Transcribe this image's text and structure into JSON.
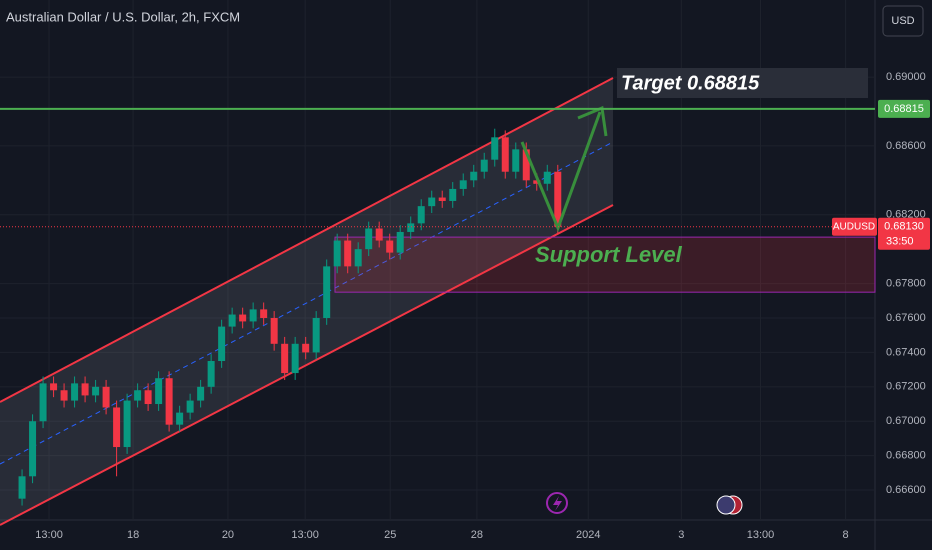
{
  "chart_data": {
    "type": "candlestick",
    "title": "Australian Dollar / U.S. Dollar, 2h, FXCM",
    "currency": "USD",
    "x": [
      0,
      1,
      2,
      3,
      4,
      5,
      6,
      7,
      8,
      9,
      10,
      11,
      12,
      13,
      14,
      15,
      16,
      17,
      18,
      19,
      20,
      21,
      22,
      23,
      24,
      25,
      26,
      27,
      28,
      29,
      30,
      31,
      32,
      33,
      34,
      35,
      36,
      37,
      38,
      39,
      40,
      41,
      42,
      43,
      44,
      45,
      46,
      47,
      48,
      49,
      50,
      51
    ],
    "open": [
      0.6655,
      0.6668,
      0.67,
      0.6722,
      0.6718,
      0.6712,
      0.6722,
      0.6715,
      0.672,
      0.6708,
      0.6685,
      0.6712,
      0.6718,
      0.671,
      0.6725,
      0.6698,
      0.6705,
      0.6712,
      0.672,
      0.6735,
      0.6755,
      0.6762,
      0.6758,
      0.6765,
      0.676,
      0.6745,
      0.6728,
      0.6745,
      0.674,
      0.676,
      0.679,
      0.6805,
      0.679,
      0.68,
      0.6812,
      0.6805,
      0.6798,
      0.681,
      0.6815,
      0.6825,
      0.683,
      0.6828,
      0.6835,
      0.684,
      0.6845,
      0.6852,
      0.6865,
      0.6845,
      0.6858,
      0.684,
      0.6838,
      0.6845
    ],
    "high": [
      0.6672,
      0.6704,
      0.6726,
      0.6726,
      0.6722,
      0.6726,
      0.6726,
      0.6724,
      0.6724,
      0.6712,
      0.6716,
      0.6722,
      0.6722,
      0.6729,
      0.6729,
      0.6709,
      0.6716,
      0.6724,
      0.6739,
      0.6759,
      0.6766,
      0.6766,
      0.6769,
      0.6769,
      0.6764,
      0.6749,
      0.6749,
      0.6749,
      0.6764,
      0.6794,
      0.6809,
      0.6809,
      0.6804,
      0.6816,
      0.6816,
      0.6809,
      0.6814,
      0.6819,
      0.6829,
      0.6834,
      0.6834,
      0.6839,
      0.6844,
      0.6849,
      0.6856,
      0.687,
      0.6869,
      0.6862,
      0.6862,
      0.6844,
      0.6849,
      0.6849
    ],
    "low": [
      0.6651,
      0.6664,
      0.6696,
      0.6714,
      0.6708,
      0.6708,
      0.6711,
      0.6711,
      0.6704,
      0.6668,
      0.6681,
      0.6708,
      0.6706,
      0.6706,
      0.6694,
      0.6694,
      0.6701,
      0.6708,
      0.6716,
      0.6731,
      0.6751,
      0.6754,
      0.6754,
      0.6756,
      0.6741,
      0.6724,
      0.6724,
      0.6736,
      0.6736,
      0.6756,
      0.6786,
      0.6786,
      0.6786,
      0.6796,
      0.6801,
      0.6794,
      0.6794,
      0.6806,
      0.6811,
      0.6821,
      0.6824,
      0.6824,
      0.6831,
      0.6836,
      0.6841,
      0.6848,
      0.6841,
      0.6841,
      0.6836,
      0.6834,
      0.6834,
      0.6809
    ],
    "close": [
      0.6668,
      0.67,
      0.6722,
      0.6718,
      0.6712,
      0.6722,
      0.6715,
      0.672,
      0.6708,
      0.6685,
      0.6712,
      0.6718,
      0.671,
      0.6725,
      0.6698,
      0.6705,
      0.6712,
      0.672,
      0.6735,
      0.6755,
      0.6762,
      0.6758,
      0.6765,
      0.676,
      0.6745,
      0.6728,
      0.6745,
      0.674,
      0.676,
      0.679,
      0.6805,
      0.679,
      0.68,
      0.6812,
      0.6805,
      0.6798,
      0.681,
      0.6815,
      0.6825,
      0.683,
      0.6828,
      0.6835,
      0.684,
      0.6845,
      0.6852,
      0.6865,
      0.6845,
      0.6858,
      0.684,
      0.6838,
      0.6845,
      0.6813
    ],
    "up_color": "#089981",
    "down_color": "#f23645",
    "xlim": [
      -2.1,
      81.2
    ],
    "xticks": [
      {
        "value": 2.57,
        "label": "13:00"
      },
      {
        "value": 10.57,
        "label": "18"
      },
      {
        "value": 19.6,
        "label": "20"
      },
      {
        "value": 26.95,
        "label": "13:00"
      },
      {
        "value": 35.05,
        "label": "25"
      },
      {
        "value": 43.3,
        "label": "28"
      },
      {
        "value": 53.9,
        "label": "2024"
      },
      {
        "value": 62.76,
        "label": "3"
      },
      {
        "value": 70.3,
        "label": "13:00"
      },
      {
        "value": 78.4,
        "label": "8"
      }
    ],
    "ylim": [
      0.66426,
      0.69448
    ],
    "yticks": [
      {
        "value": 0.69,
        "label": "0.69000"
      },
      {
        "value": 0.686,
        "label": "0.68600"
      },
      {
        "value": 0.682,
        "label": "0.68200"
      },
      {
        "value": 0.678,
        "label": "0.67800"
      },
      {
        "value": 0.676,
        "label": "0.67600"
      },
      {
        "value": 0.674,
        "label": "0.67400"
      },
      {
        "value": 0.672,
        "label": "0.67200"
      },
      {
        "value": 0.67,
        "label": "0.67000"
      },
      {
        "value": 0.668,
        "label": "0.66800"
      },
      {
        "value": 0.666,
        "label": "0.66600"
      }
    ],
    "target_line": {
      "value": 0.68815,
      "label": "0.68815",
      "color": "#4caf50"
    },
    "last_price": {
      "symbol": "AUDUSD",
      "value": 0.6813,
      "label": "0.68130",
      "countdown": "33:50"
    },
    "support_zone": [
      0.6807,
      0.6775
    ],
    "annotations": [
      "Target 0.68815",
      "Support Level"
    ]
  }
}
